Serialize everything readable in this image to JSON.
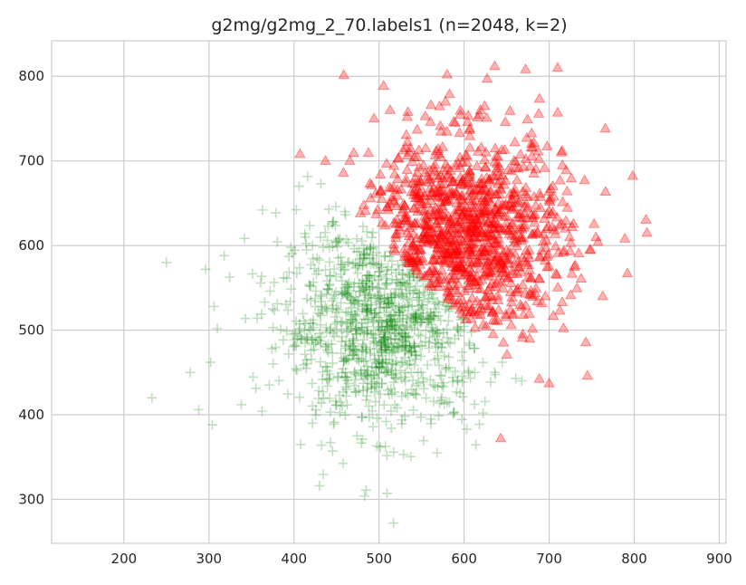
{
  "chart_data": {
    "type": "scatter",
    "title": "g2mg/g2mg_2_70.labels1 (n=2048, k=2)",
    "xlabel": "",
    "ylabel": "",
    "xlim": [
      115,
      908
    ],
    "ylim": [
      248,
      842
    ],
    "xticks": [
      200,
      300,
      400,
      500,
      600,
      700,
      800,
      900
    ],
    "yticks": [
      300,
      400,
      500,
      600,
      700,
      800
    ],
    "grid": true,
    "legend": "none",
    "n": 2048,
    "k": 2,
    "series": [
      {
        "marker": "plus",
        "color": "#008000",
        "opacity": 0.25,
        "count": 1024,
        "center": [
          505,
          510
        ],
        "spread": [
          60,
          60
        ],
        "notable_points": [
          [
            233,
            420
          ],
          [
            250,
            580
          ],
          [
            278,
            450
          ],
          [
            288,
            406
          ],
          [
            296,
            572
          ],
          [
            302,
            462
          ],
          [
            304,
            388
          ],
          [
            306,
            528
          ],
          [
            318,
            588
          ],
          [
            338,
            412
          ],
          [
            363,
            642
          ],
          [
            406,
            670
          ],
          [
            441,
            643
          ],
          [
            483,
            304
          ],
          [
            517,
            272
          ],
          [
            430,
            316
          ]
        ]
      },
      {
        "marker": "triangle",
        "color": "#ff0000",
        "opacity": 0.3,
        "count": 1024,
        "center": [
          600,
          610
        ],
        "spread": [
          60,
          60
        ],
        "notable_points": [
          [
            407,
            708
          ],
          [
            437,
            700
          ],
          [
            494,
            750
          ],
          [
            513,
            760
          ],
          [
            578,
            770
          ],
          [
            580,
            802
          ],
          [
            627,
            797
          ],
          [
            636,
            812
          ],
          [
            710,
            810
          ],
          [
            710,
            757
          ],
          [
            766,
            738
          ],
          [
            789,
            608
          ],
          [
            792,
            567
          ],
          [
            700,
            437
          ],
          [
            745,
            446
          ],
          [
            643,
            372
          ]
        ]
      }
    ]
  }
}
